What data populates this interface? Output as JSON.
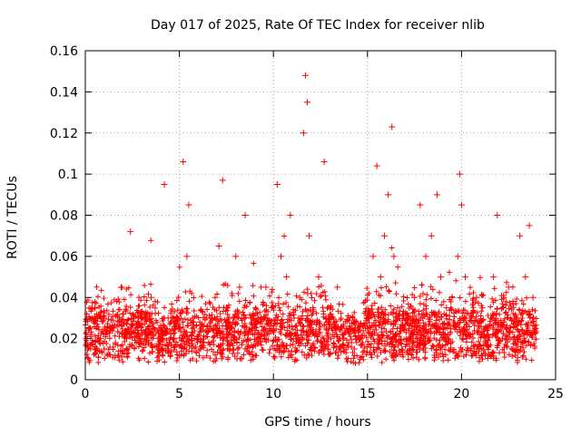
{
  "chart_data": {
    "type": "scatter",
    "title": "Day 017 of 2025, Rate Of TEC Index for receiver nlib",
    "xlabel": "GPS time / hours",
    "ylabel": "ROTI / TECUs",
    "xlim": [
      0,
      25
    ],
    "ylim": [
      0,
      0.16
    ],
    "x_ticks": [
      0,
      5,
      10,
      15,
      20,
      25
    ],
    "x_tick_labels": [
      "0",
      "5",
      "10",
      "15",
      "20",
      "25"
    ],
    "y_ticks": [
      0,
      0.02,
      0.04,
      0.06,
      0.08,
      0.1,
      0.12,
      0.14,
      0.16
    ],
    "y_tick_labels": [
      "0",
      "0.02",
      "0.04",
      "0.06",
      "0.08",
      "0.1",
      "0.12",
      "0.14",
      "0.16"
    ],
    "grid": true,
    "marker": "+",
    "color": "#ff0000",
    "series": [
      {
        "name": "ROTI",
        "x": [
          0.1,
          0.3,
          0.5,
          0.8,
          1.0,
          1.3,
          1.6,
          1.9,
          2.2,
          2.4,
          2.6,
          2.9,
          3.2,
          3.5,
          3.8,
          4.0,
          4.2,
          4.4,
          4.7,
          5.0,
          5.2,
          5.4,
          5.5,
          5.7,
          6.0,
          6.3,
          6.6,
          6.9,
          7.1,
          7.3,
          7.5,
          7.8,
          8.0,
          8.2,
          8.5,
          8.8,
          9.0,
          9.3,
          9.6,
          9.9,
          10.2,
          10.4,
          10.7,
          10.9,
          11.1,
          11.4,
          11.6,
          11.7,
          11.8,
          11.9,
          12.1,
          12.4,
          12.7,
          12.8,
          13.1,
          13.4,
          13.7,
          14.0,
          14.3,
          14.6,
          14.9,
          15.1,
          15.3,
          15.5,
          15.7,
          15.9,
          16.1,
          16.3,
          16.4,
          16.6,
          16.9,
          17.2,
          17.5,
          17.8,
          18.1,
          18.4,
          18.7,
          18.9,
          19.2,
          19.5,
          19.8,
          19.9,
          20.0,
          20.2,
          20.5,
          20.8,
          21.1,
          21.4,
          21.7,
          21.9,
          22.2,
          22.5,
          22.8,
          23.1,
          23.4,
          23.6,
          23.8,
          23.9
        ],
        "y": [
          0.018,
          0.022,
          0.035,
          0.02,
          0.015,
          0.025,
          0.018,
          0.045,
          0.02,
          0.072,
          0.03,
          0.018,
          0.022,
          0.04,
          0.016,
          0.02,
          0.095,
          0.03,
          0.02,
          0.025,
          0.106,
          0.06,
          0.085,
          0.03,
          0.02,
          0.018,
          0.025,
          0.04,
          0.065,
          0.097,
          0.035,
          0.025,
          0.06,
          0.045,
          0.08,
          0.03,
          0.022,
          0.02,
          0.045,
          0.035,
          0.095,
          0.06,
          0.05,
          0.08,
          0.03,
          0.04,
          0.12,
          0.148,
          0.135,
          0.07,
          0.035,
          0.05,
          0.106,
          0.03,
          0.025,
          0.045,
          0.02,
          0.018,
          0.015,
          0.02,
          0.025,
          0.03,
          0.06,
          0.104,
          0.05,
          0.07,
          0.09,
          0.123,
          0.06,
          0.035,
          0.025,
          0.03,
          0.04,
          0.085,
          0.06,
          0.07,
          0.09,
          0.05,
          0.035,
          0.04,
          0.06,
          0.1,
          0.085,
          0.05,
          0.03,
          0.04,
          0.035,
          0.025,
          0.05,
          0.08,
          0.035,
          0.045,
          0.03,
          0.07,
          0.05,
          0.075,
          0.04,
          0.025
        ]
      }
    ]
  }
}
